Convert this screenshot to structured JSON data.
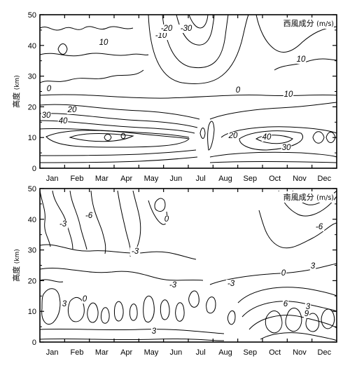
{
  "chart_data": [
    {
      "type": "contour",
      "title": "西風成分",
      "unit": "(m/s)",
      "ylabel": "高度",
      "ylabel_unit": "(km)",
      "x_categories": [
        "Jan",
        "Feb",
        "Mar",
        "Apr",
        "May",
        "Jun",
        "Jul",
        "Aug",
        "Sep",
        "Oct",
        "Nov",
        "Dec"
      ],
      "ylim": [
        0,
        50
      ],
      "yticks": [
        "0",
        "10",
        "20",
        "30",
        "40",
        "50"
      ],
      "contour_labels": [
        "-10",
        "-20",
        "-30",
        "10",
        "10",
        "0",
        "10",
        "30",
        "20",
        "40",
        "0",
        "20",
        "40",
        "30"
      ],
      "contour_levels": [
        -30,
        -20,
        -10,
        0,
        10,
        20,
        30,
        40
      ]
    },
    {
      "type": "contour",
      "title": "南風成分",
      "unit": "(m/s)",
      "ylabel": "高度",
      "ylabel_unit": "(km)",
      "x_categories": [
        "Jan",
        "Feb",
        "Mar",
        "Apr",
        "May",
        "Jun",
        "Jul",
        "Aug",
        "Sep",
        "Oct",
        "Nov",
        "Dec"
      ],
      "ylim": [
        0,
        50
      ],
      "yticks": [
        "0",
        "10",
        "20",
        "30",
        "40",
        "50"
      ],
      "contour_labels": [
        "-6",
        "-3",
        "0",
        "-3",
        "-3",
        "-3",
        "-6",
        "3",
        "0",
        "3",
        "3",
        "0",
        "3",
        "6",
        "9"
      ],
      "contour_levels": [
        -6,
        -3,
        0,
        3,
        6,
        9
      ]
    }
  ]
}
